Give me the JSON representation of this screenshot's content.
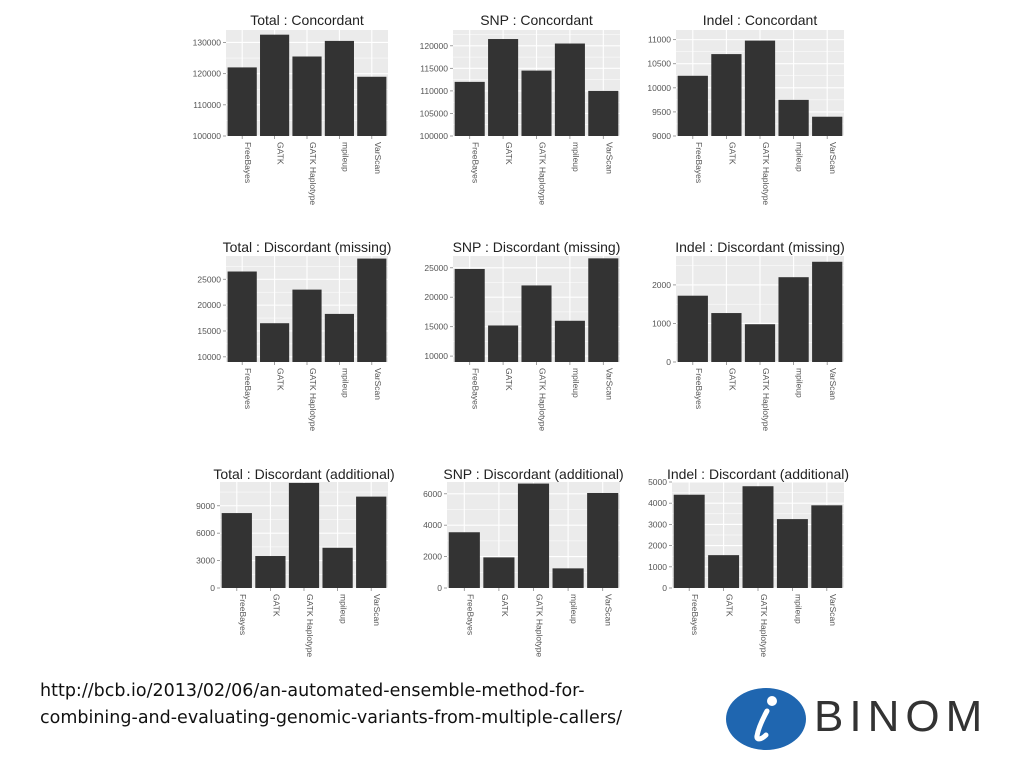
{
  "chart_data": [
    {
      "type": "bar",
      "title": "Total : Concordant",
      "categories": [
        "FreeBayes",
        "GATK",
        "GATK Haplotype",
        "mpileup",
        "VarScan"
      ],
      "values": [
        122000,
        132500,
        125500,
        130500,
        119000
      ],
      "ylim": [
        100000,
        134000
      ],
      "yticks": [
        100000,
        110000,
        120000,
        130000
      ],
      "grid": true
    },
    {
      "type": "bar",
      "title": "SNP : Concordant",
      "categories": [
        "FreeBayes",
        "GATK",
        "GATK Haplotype",
        "mpileup",
        "VarScan"
      ],
      "values": [
        112000,
        121500,
        114500,
        120500,
        110000
      ],
      "ylim": [
        100000,
        123500
      ],
      "yticks": [
        100000,
        105000,
        110000,
        115000,
        120000
      ],
      "grid": true
    },
    {
      "type": "bar",
      "title": "Indel : Concordant",
      "categories": [
        "FreeBayes",
        "GATK",
        "GATK Haplotype",
        "mpileup",
        "VarScan"
      ],
      "values": [
        10250,
        10700,
        10980,
        9750,
        9400
      ],
      "ylim": [
        9000,
        11200
      ],
      "yticks": [
        9000,
        9500,
        10000,
        10500,
        11000
      ],
      "grid": true
    },
    {
      "type": "bar",
      "title": "Total : Discordant (missing)",
      "categories": [
        "FreeBayes",
        "GATK",
        "GATK Haplotype",
        "mpileup",
        "VarScan"
      ],
      "values": [
        26500,
        16500,
        23000,
        18300,
        29000
      ],
      "ylim": [
        9000,
        29500
      ],
      "yticks": [
        10000,
        15000,
        20000,
        25000
      ],
      "grid": true
    },
    {
      "type": "bar",
      "title": "SNP : Discordant (missing)",
      "categories": [
        "FreeBayes",
        "GATK",
        "GATK Haplotype",
        "mpileup",
        "VarScan"
      ],
      "values": [
        24800,
        15200,
        22000,
        16000,
        26600
      ],
      "ylim": [
        9000,
        27000
      ],
      "yticks": [
        10000,
        15000,
        20000,
        25000
      ],
      "grid": true
    },
    {
      "type": "bar",
      "title": "Indel : Discordant (missing)",
      "categories": [
        "FreeBayes",
        "GATK",
        "GATK Haplotype",
        "mpileup",
        "VarScan"
      ],
      "values": [
        1720,
        1270,
        980,
        2200,
        2600
      ],
      "ylim": [
        0,
        2750
      ],
      "yticks": [
        0,
        1000,
        2000
      ],
      "grid": true
    },
    {
      "type": "bar",
      "title": "Total : Discordant (additional)",
      "categories": [
        "FreeBayes",
        "GATK",
        "GATK Haplotype",
        "mpileup",
        "VarScan"
      ],
      "values": [
        8200,
        3500,
        11500,
        4400,
        10000
      ],
      "ylim": [
        0,
        11600
      ],
      "yticks": [
        0,
        3000,
        6000,
        9000
      ],
      "grid": true
    },
    {
      "type": "bar",
      "title": "SNP : Discordant (additional)",
      "categories": [
        "FreeBayes",
        "GATK",
        "GATK Haplotype",
        "mpileup",
        "VarScan"
      ],
      "values": [
        3550,
        1950,
        6650,
        1250,
        6050
      ],
      "ylim": [
        0,
        6750
      ],
      "yticks": [
        0,
        2000,
        4000,
        6000
      ],
      "grid": true
    },
    {
      "type": "bar",
      "title": "Indel : Discordant (additional)",
      "categories": [
        "FreeBayes",
        "GATK",
        "GATK Haplotype",
        "mpileup",
        "VarScan"
      ],
      "values": [
        4400,
        1550,
        4800,
        3250,
        3900
      ],
      "ylim": [
        0,
        5000
      ],
      "yticks": [
        0,
        1000,
        2000,
        3000,
        4000,
        5000
      ],
      "grid": true
    }
  ],
  "colors": {
    "bar": "#333333",
    "panel": "#ebebeb",
    "grid": "#ffffff",
    "text": "#222222",
    "axis_text": "#555555",
    "logo_blue": "#1f66b0"
  },
  "footer": {
    "url_line1": "http://bcb.io/2013/02/06/an-automated-ensemble-method-for-",
    "url_line2": "combining-and-evaluating-genomic-variants-from-multiple-callers/"
  },
  "logo": {
    "icon": "i-letter-icon",
    "text": "BINOM"
  }
}
